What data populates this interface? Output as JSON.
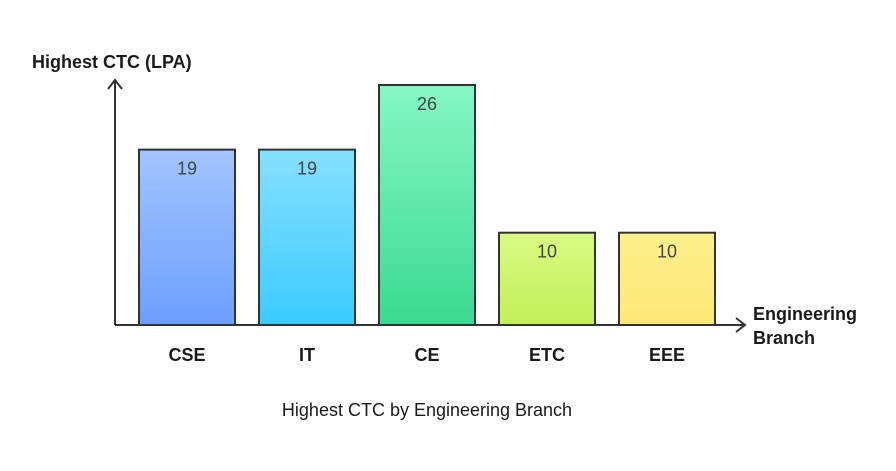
{
  "chart_data": {
    "type": "bar",
    "title": "Highest CTC by Engineering Branch",
    "ylabel": "Highest CTC (LPA)",
    "xlabel": [
      "Engineering",
      "Branch"
    ],
    "categories": [
      "CSE",
      "IT",
      "CE",
      "ETC",
      "EEE"
    ],
    "values": [
      19,
      19,
      26,
      10,
      10
    ],
    "ylim": [
      0,
      26
    ],
    "grid": false,
    "legend": "none",
    "bar_colors": [
      {
        "top": "#a3c4ff",
        "bottom": "#6b9fff"
      },
      {
        "top": "#86e0ff",
        "bottom": "#3ccbff"
      },
      {
        "top": "#86f7c4",
        "bottom": "#3ad992"
      },
      {
        "top": "#d9fa82",
        "bottom": "#c2ef5a"
      },
      {
        "top": "#fff08c",
        "bottom": "#fce876"
      }
    ],
    "bar_stroke": "#333333",
    "axis_color": "#333333"
  }
}
